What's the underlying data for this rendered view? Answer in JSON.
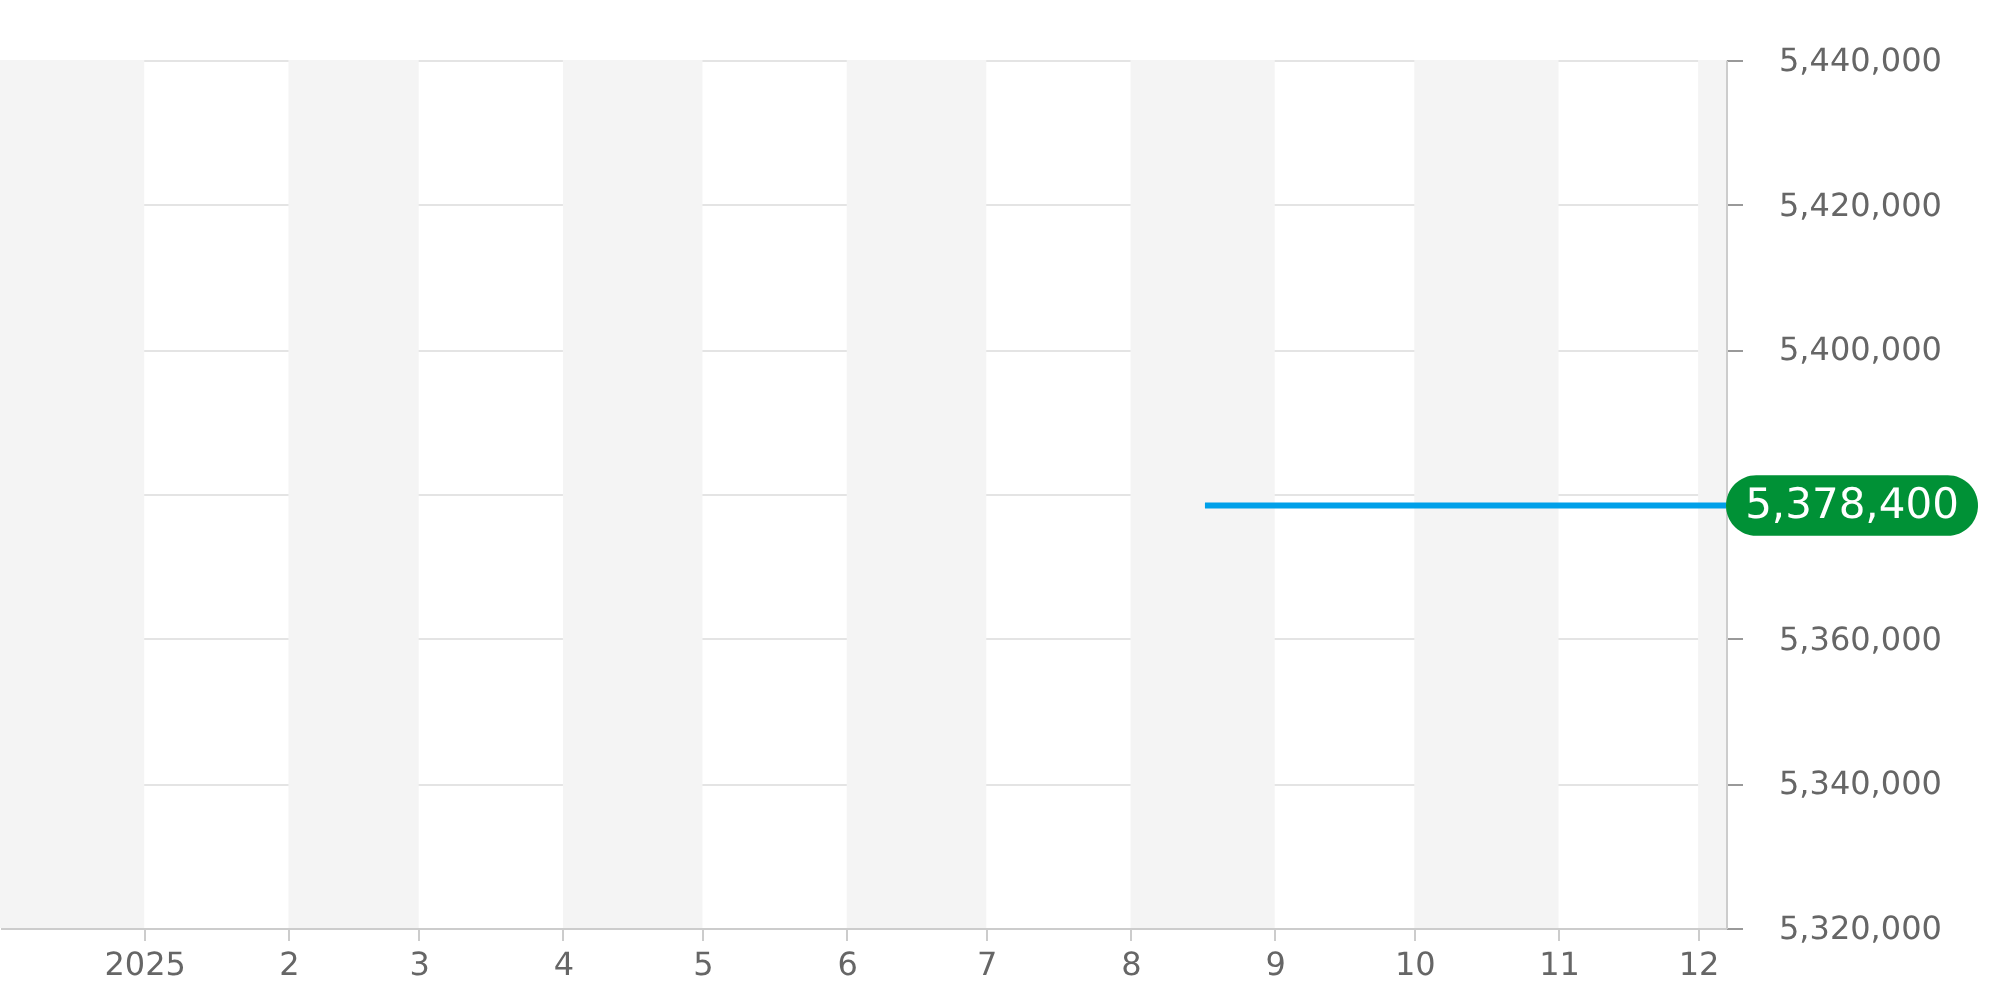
{
  "chart_data": {
    "type": "line",
    "xlim": [
      "2024-12-01",
      "2025-12-07"
    ],
    "xticks": [
      {
        "value": "2025-01-01",
        "label": "2025"
      },
      {
        "value": "2025-02-01",
        "label": "2"
      },
      {
        "value": "2025-03-01",
        "label": "3"
      },
      {
        "value": "2025-04-01",
        "label": "4"
      },
      {
        "value": "2025-05-01",
        "label": "5"
      },
      {
        "value": "2025-06-01",
        "label": "6"
      },
      {
        "value": "2025-07-01",
        "label": "7"
      },
      {
        "value": "2025-08-01",
        "label": "8"
      },
      {
        "value": "2025-09-01",
        "label": "9"
      },
      {
        "value": "2025-10-01",
        "label": "10"
      },
      {
        "value": "2025-11-01",
        "label": "11"
      },
      {
        "value": "2025-12-01",
        "label": "12"
      }
    ],
    "ylim": [
      5320000,
      5440000
    ],
    "yticks": [
      {
        "value": 5320000,
        "label": "5,320,000"
      },
      {
        "value": 5340000,
        "label": "5,340,000"
      },
      {
        "value": 5360000,
        "label": "5,360,000"
      },
      {
        "value": 5380000,
        "label": null
      },
      {
        "value": 5400000,
        "label": "5,400,000"
      },
      {
        "value": 5420000,
        "label": "5,420,000"
      },
      {
        "value": 5440000,
        "label": "5,440,000"
      }
    ],
    "grid": "y",
    "bands": [
      {
        "axis": "x",
        "from": "2024-12-01",
        "to": "2025-01-01",
        "color": "#f4f4f4"
      },
      {
        "axis": "x",
        "from": "2025-02-01",
        "to": "2025-03-01",
        "color": "#f4f4f4"
      },
      {
        "axis": "x",
        "from": "2025-04-01",
        "to": "2025-05-01",
        "color": "#f4f4f4"
      },
      {
        "axis": "x",
        "from": "2025-06-01",
        "to": "2025-07-01",
        "color": "#f4f4f4"
      },
      {
        "axis": "x",
        "from": "2025-08-01",
        "to": "2025-09-01",
        "color": "#f4f4f4"
      },
      {
        "axis": "x",
        "from": "2025-10-01",
        "to": "2025-11-01",
        "color": "#f4f4f4"
      },
      {
        "axis": "x",
        "from": "2025-12-01",
        "to": "2025-12-07",
        "color": "#f4f4f4"
      }
    ],
    "series": [
      {
        "color": "#00a0e9",
        "x": [
          "2025-08-17",
          "2025-12-07"
        ],
        "values": [
          5378400,
          5378400
        ],
        "value_labels": [
          null,
          "5,378,400"
        ]
      }
    ]
  }
}
